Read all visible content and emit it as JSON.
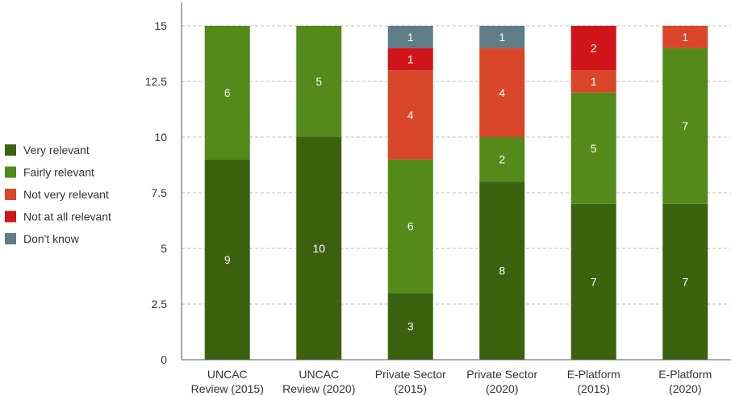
{
  "chart_data": {
    "type": "bar",
    "stacked": true,
    "categories": [
      [
        "UNCAC",
        "Review (2015)"
      ],
      [
        "UNCAC",
        "Review (2020)"
      ],
      [
        "Private Sector",
        "(2015)"
      ],
      [
        "Private Sector",
        "(2020)"
      ],
      [
        "E-Platform",
        "(2015)"
      ],
      [
        "E-Platform",
        "(2020)"
      ]
    ],
    "series": [
      {
        "name": "Very relevant",
        "color": "#3b620f",
        "values": [
          9,
          10,
          3,
          8,
          7,
          7
        ]
      },
      {
        "name": "Fairly relevant",
        "color": "#548a1a",
        "values": [
          6,
          5,
          6,
          2,
          5,
          7
        ]
      },
      {
        "name": "Not very relevant",
        "color": "#d9462a",
        "values": [
          0,
          0,
          4,
          4,
          1,
          1
        ]
      },
      {
        "name": "Not at all relevant",
        "color": "#d0161a",
        "values": [
          0,
          0,
          1,
          0,
          2,
          0
        ]
      },
      {
        "name": "Don't know",
        "color": "#5e7d86",
        "values": [
          0,
          0,
          1,
          1,
          0,
          0
        ]
      }
    ],
    "ylim": [
      0,
      15
    ],
    "yticks": [
      0,
      2.5,
      5,
      7.5,
      10,
      12.5,
      15
    ],
    "ytick_labels": [
      "0",
      "2.5",
      "5",
      "7.5",
      "10",
      "12.5",
      "15"
    ],
    "grid": true,
    "legend_position": "left"
  }
}
